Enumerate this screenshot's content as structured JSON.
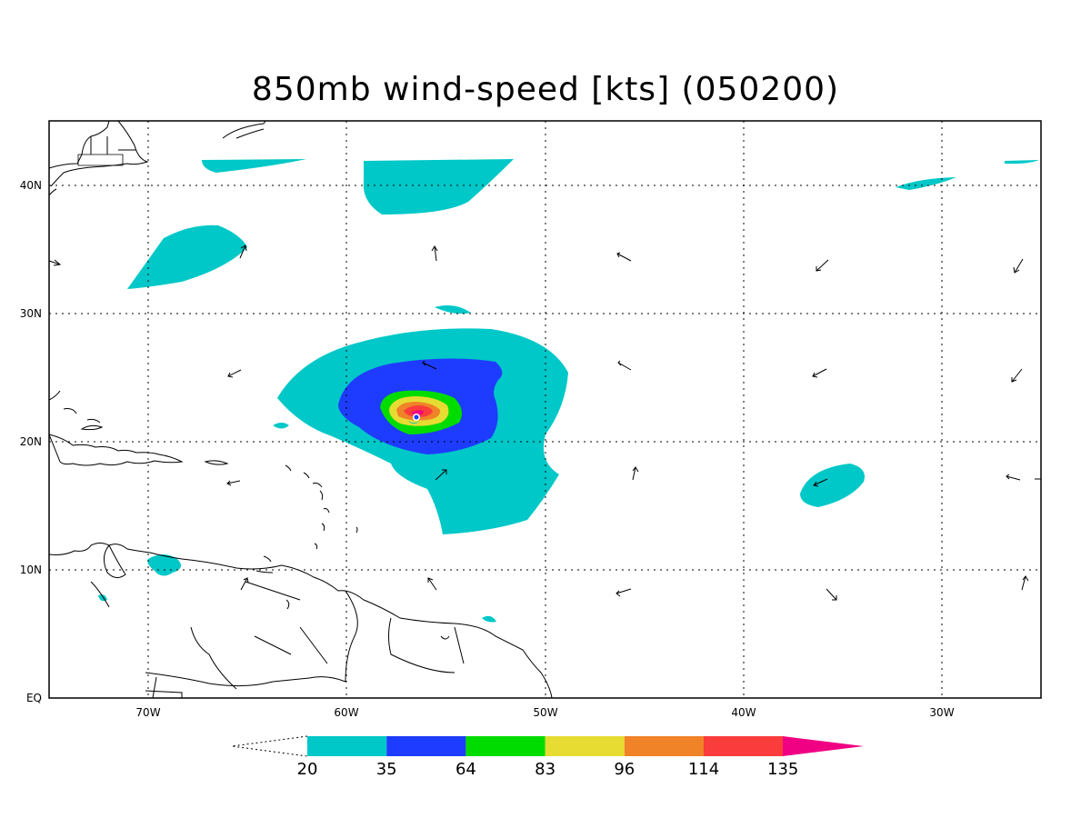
{
  "title": "850mb wind-speed [kts] (050200)",
  "axes": {
    "x_ticks": [
      "70W",
      "60W",
      "50W",
      "40W",
      "30W"
    ],
    "y_ticks": [
      "EQ",
      "10N",
      "20N",
      "30N",
      "40N"
    ],
    "lon_range": [
      -75,
      -25
    ],
    "lat_range": [
      0,
      45
    ],
    "grid": true
  },
  "colorbar": {
    "levels": [
      "20",
      "35",
      "64",
      "83",
      "96",
      "114",
      "135"
    ],
    "colors": [
      "#00c8c8",
      "#1e3cff",
      "#00dc00",
      "#e6dc32",
      "#f08228",
      "#fa3c3c",
      "#f00082"
    ]
  },
  "map_features": {
    "storm_center": {
      "lon": -56.0,
      "lat": 21.8
    },
    "max_wind_category": "135+"
  }
}
